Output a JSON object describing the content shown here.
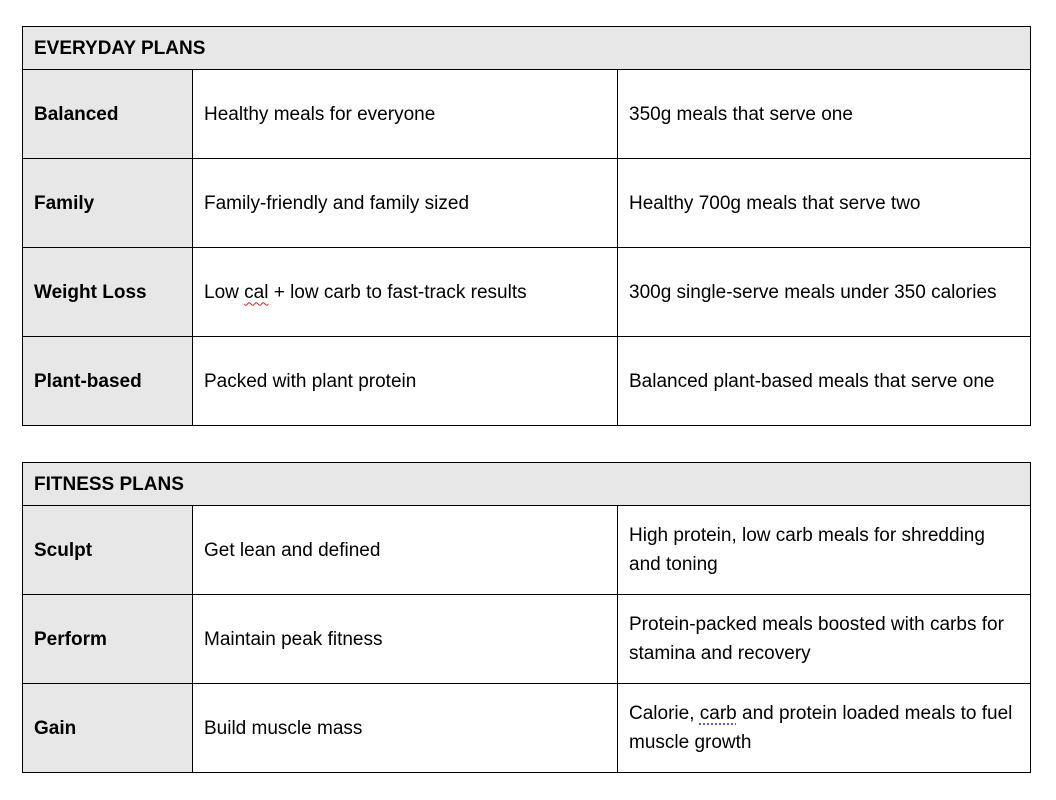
{
  "tables": [
    {
      "title": "EVERYDAY PLANS",
      "rows": [
        {
          "name": "Balanced",
          "tagline": [
            {
              "t": "Healthy meals for everyone"
            }
          ],
          "description": [
            {
              "t": "350g meals that serve one"
            }
          ]
        },
        {
          "name": "Family",
          "tagline": [
            {
              "t": "Family-friendly and family sized"
            }
          ],
          "description": [
            {
              "t": "Healthy 700g meals that serve two"
            }
          ]
        },
        {
          "name": "Weight Loss",
          "tagline": [
            {
              "t": "Low "
            },
            {
              "t": "cal",
              "mark": "spelling"
            },
            {
              "t": " + low carb to fast-track results"
            }
          ],
          "description": [
            {
              "t": "300g single-serve meals under 350 calories"
            }
          ]
        },
        {
          "name": "Plant-based",
          "tagline": [
            {
              "t": "Packed with plant protein"
            }
          ],
          "description": [
            {
              "t": "Balanced plant-based meals that serve one"
            }
          ]
        }
      ]
    },
    {
      "title": "FITNESS PLANS",
      "rows": [
        {
          "name": "Sculpt",
          "tagline": [
            {
              "t": "Get lean and defined"
            }
          ],
          "description": [
            {
              "t": "High protein, low carb meals for shredding and toning"
            }
          ]
        },
        {
          "name": "Perform",
          "tagline": [
            {
              "t": "Maintain peak fitness"
            }
          ],
          "description": [
            {
              "t": "Protein-packed meals boosted with carbs for stamina and recovery"
            }
          ]
        },
        {
          "name": "Gain",
          "tagline": [
            {
              "t": "Build muscle mass"
            }
          ],
          "description": [
            {
              "t": "Calorie, "
            },
            {
              "t": "carb",
              "mark": "grammar"
            },
            {
              "t": " and protein loaded meals to fuel muscle growth"
            }
          ]
        }
      ]
    }
  ]
}
